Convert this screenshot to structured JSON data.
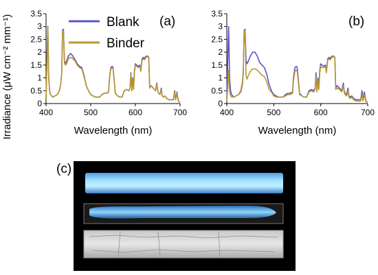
{
  "figure": {
    "ylabel": "Irradiance (μW cm⁻² mm⁻¹)",
    "panel_c_label": "(c)"
  },
  "colors": {
    "Blank": "#5a55c8",
    "Binder": "#b8962c",
    "photo_background": "#000000"
  },
  "photo": {
    "description_items": [
      "glowing-strip-top",
      "glowing-strip-middle",
      "clear-strip-bottom"
    ]
  },
  "chart_data": [
    {
      "type": "line",
      "panel": "(a)",
      "xlabel": "Wavelength (nm)",
      "ylabel": "Irradiance (μW cm⁻² mm⁻¹)",
      "xlim": [
        400,
        700
      ],
      "ylim": [
        0,
        3.5
      ],
      "xticks": [
        400,
        500,
        600,
        700
      ],
      "yticks": [
        0,
        0.5,
        1,
        1.5,
        2,
        2.5,
        3,
        3.5
      ],
      "ytick_labels": [
        "0",
        "0.5",
        "1",
        "1.5",
        "2",
        "2.5",
        "3",
        "3.5"
      ],
      "legend": {
        "placement": "top",
        "entries": [
          "Blank",
          "Binder"
        ]
      },
      "grid": false,
      "series": [
        {
          "name": "Blank",
          "x": [
            400,
            402,
            404,
            406,
            408,
            410,
            415,
            420,
            425,
            430,
            433,
            435,
            437,
            439,
            441,
            443,
            446,
            450,
            455,
            460,
            465,
            470,
            475,
            480,
            485,
            490,
            495,
            500,
            505,
            510,
            515,
            520,
            525,
            530,
            535,
            540,
            542,
            545,
            548,
            550,
            555,
            560,
            565,
            570,
            575,
            580,
            585,
            588,
            590,
            592,
            594,
            596,
            598,
            600,
            603,
            606,
            610,
            612,
            615,
            618,
            620,
            624,
            628,
            630,
            632,
            635,
            640,
            645,
            648,
            650,
            652,
            655,
            658,
            660,
            663,
            666,
            670,
            675,
            680,
            685,
            688,
            690,
            693,
            696,
            700
          ],
          "y": [
            0.15,
            1.7,
            3.0,
            1.0,
            0.5,
            0.35,
            0.25,
            0.3,
            0.35,
            0.5,
            0.8,
            1.2,
            2.85,
            2.9,
            1.7,
            1.55,
            1.65,
            1.85,
            1.95,
            1.85,
            1.7,
            1.55,
            1.45,
            1.4,
            1.1,
            0.7,
            0.5,
            0.35,
            0.3,
            0.25,
            0.25,
            0.25,
            0.35,
            0.4,
            0.4,
            0.45,
            1.0,
            1.4,
            1.45,
            1.4,
            0.4,
            0.3,
            0.25,
            0.25,
            0.5,
            0.55,
            0.5,
            0.6,
            1.2,
            0.5,
            1.0,
            0.6,
            1.3,
            1.55,
            1.5,
            1.45,
            1.5,
            1.3,
            1.75,
            1.8,
            1.75,
            1.85,
            1.85,
            1.8,
            0.6,
            0.7,
            0.6,
            0.5,
            0.8,
            0.5,
            0.4,
            0.35,
            0.6,
            0.3,
            0.25,
            0.3,
            0.2,
            0.15,
            0.15,
            0.15,
            0.5,
            0.15,
            0.45,
            0.1,
            0.05
          ]
        },
        {
          "name": "Binder",
          "x": [
            400,
            402,
            404,
            406,
            408,
            410,
            415,
            420,
            425,
            430,
            433,
            435,
            437,
            439,
            441,
            443,
            446,
            450,
            455,
            460,
            465,
            470,
            475,
            480,
            485,
            490,
            495,
            500,
            505,
            510,
            515,
            520,
            525,
            530,
            535,
            540,
            542,
            545,
            548,
            550,
            555,
            560,
            565,
            570,
            575,
            580,
            585,
            588,
            590,
            592,
            594,
            596,
            598,
            600,
            603,
            606,
            610,
            612,
            615,
            618,
            620,
            624,
            628,
            630,
            632,
            635,
            640,
            645,
            648,
            650,
            652,
            655,
            658,
            660,
            663,
            666,
            670,
            675,
            680,
            685,
            688,
            690,
            693,
            696,
            700
          ],
          "y": [
            0.15,
            1.6,
            2.95,
            0.95,
            0.5,
            0.35,
            0.25,
            0.3,
            0.35,
            0.5,
            0.8,
            1.2,
            2.8,
            2.85,
            1.6,
            1.5,
            1.55,
            1.75,
            1.8,
            1.75,
            1.65,
            1.5,
            1.4,
            1.35,
            1.05,
            0.7,
            0.5,
            0.35,
            0.3,
            0.25,
            0.25,
            0.25,
            0.35,
            0.4,
            0.4,
            0.45,
            0.95,
            1.35,
            1.4,
            1.35,
            0.4,
            0.3,
            0.25,
            0.25,
            0.5,
            0.55,
            0.5,
            0.6,
            1.15,
            0.5,
            0.95,
            0.55,
            1.25,
            1.5,
            1.45,
            1.4,
            1.45,
            1.25,
            1.7,
            1.75,
            1.7,
            1.8,
            1.85,
            1.75,
            0.6,
            0.7,
            0.6,
            0.5,
            0.75,
            0.5,
            0.4,
            0.35,
            0.55,
            0.3,
            0.25,
            0.3,
            0.2,
            0.15,
            0.15,
            0.15,
            0.45,
            0.15,
            0.4,
            0.1,
            0.05
          ]
        }
      ]
    },
    {
      "type": "line",
      "panel": "(b)",
      "xlabel": "Wavelength (nm)",
      "ylabel": "",
      "xlim": [
        400,
        700
      ],
      "ylim": [
        0,
        3.5
      ],
      "xticks": [
        400,
        500,
        600,
        700
      ],
      "yticks": [
        0,
        0.5,
        1,
        1.5,
        2,
        2.5,
        3,
        3.5
      ],
      "ytick_labels": [
        "0",
        "0.5",
        "1",
        "1.5",
        "2",
        "2.5",
        "3",
        "3.5"
      ],
      "grid": false,
      "series": [
        {
          "name": "Blank",
          "x": [
            400,
            402,
            404,
            406,
            408,
            410,
            415,
            420,
            425,
            430,
            433,
            435,
            437,
            439,
            441,
            443,
            446,
            450,
            455,
            460,
            465,
            470,
            475,
            480,
            485,
            490,
            495,
            500,
            505,
            510,
            515,
            520,
            525,
            530,
            535,
            540,
            542,
            545,
            548,
            550,
            555,
            560,
            565,
            570,
            575,
            580,
            585,
            588,
            590,
            592,
            594,
            596,
            598,
            600,
            603,
            606,
            610,
            612,
            615,
            618,
            620,
            624,
            628,
            630,
            632,
            635,
            640,
            645,
            648,
            650,
            652,
            655,
            658,
            660,
            663,
            666,
            670,
            675,
            680,
            685,
            688,
            690,
            693,
            696,
            700
          ],
          "y": [
            0.15,
            1.7,
            3.0,
            1.0,
            0.5,
            0.35,
            0.25,
            0.3,
            0.35,
            0.5,
            0.8,
            1.2,
            2.85,
            2.9,
            1.7,
            1.55,
            1.65,
            1.85,
            2.0,
            2.0,
            1.85,
            1.6,
            1.5,
            1.4,
            1.15,
            0.75,
            0.5,
            0.35,
            0.3,
            0.25,
            0.25,
            0.25,
            0.35,
            0.4,
            0.4,
            0.45,
            1.0,
            1.4,
            1.45,
            1.4,
            0.4,
            0.3,
            0.25,
            0.25,
            0.5,
            0.55,
            0.5,
            0.6,
            1.2,
            0.5,
            1.0,
            0.6,
            1.3,
            1.55,
            1.5,
            1.45,
            1.5,
            1.3,
            1.75,
            1.8,
            1.75,
            1.85,
            1.85,
            1.8,
            0.6,
            0.7,
            0.6,
            0.5,
            0.8,
            0.5,
            0.4,
            0.35,
            0.6,
            0.3,
            0.25,
            0.3,
            0.2,
            0.15,
            0.15,
            0.15,
            0.5,
            0.15,
            0.45,
            0.1,
            0.05
          ]
        },
        {
          "name": "Binder",
          "x": [
            400,
            402,
            404,
            406,
            408,
            410,
            415,
            420,
            425,
            430,
            433,
            435,
            437,
            439,
            441,
            443,
            446,
            450,
            455,
            460,
            465,
            470,
            475,
            480,
            485,
            490,
            495,
            500,
            505,
            510,
            515,
            520,
            525,
            530,
            535,
            540,
            542,
            545,
            548,
            550,
            555,
            560,
            565,
            570,
            575,
            580,
            585,
            588,
            590,
            592,
            594,
            596,
            598,
            600,
            603,
            606,
            610,
            612,
            615,
            618,
            620,
            624,
            628,
            630,
            632,
            635,
            640,
            645,
            648,
            650,
            652,
            655,
            658,
            660,
            663,
            666,
            670,
            675,
            680,
            685,
            688,
            690,
            693,
            696,
            700
          ],
          "y": [
            0.1,
            0.6,
            1.3,
            0.5,
            0.3,
            0.25,
            0.25,
            0.3,
            0.35,
            0.45,
            0.7,
            1.1,
            2.8,
            2.85,
            1.1,
            0.95,
            1.1,
            1.25,
            1.35,
            1.35,
            1.3,
            1.2,
            1.1,
            1.05,
            0.85,
            0.55,
            0.45,
            0.3,
            0.25,
            0.25,
            0.25,
            0.25,
            0.3,
            0.35,
            0.35,
            0.4,
            0.9,
            1.25,
            1.3,
            1.25,
            0.35,
            0.3,
            0.25,
            0.25,
            0.45,
            0.5,
            0.45,
            0.55,
            1.05,
            0.45,
            0.9,
            0.55,
            1.2,
            1.45,
            1.4,
            1.4,
            1.45,
            1.2,
            1.7,
            1.75,
            1.7,
            1.8,
            1.85,
            1.75,
            0.55,
            0.6,
            0.55,
            0.45,
            0.7,
            0.45,
            0.35,
            0.3,
            0.5,
            0.25,
            0.2,
            0.25,
            0.15,
            0.1,
            0.1,
            0.1,
            0.35,
            0.1,
            0.35,
            0.08,
            0.05
          ]
        }
      ]
    }
  ]
}
